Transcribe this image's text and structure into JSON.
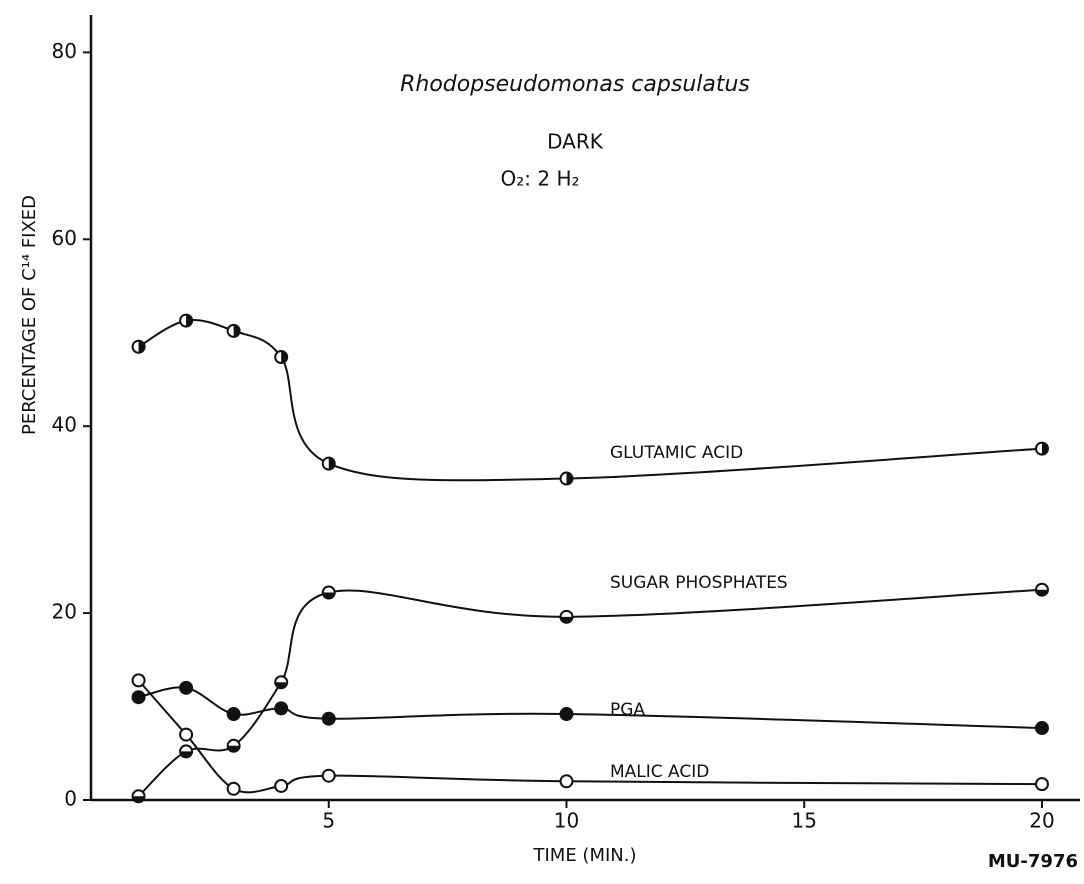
{
  "chart_data": {
    "type": "line",
    "title": "Rhodopseudomonas capsulatus",
    "annotations": [
      "DARK",
      "O₂: 2 H₂",
      "MU-7976"
    ],
    "xlabel": "TIME (MIN.)",
    "ylabel": "PERCENTAGE OF C¹⁴ FIXED",
    "x": [
      1,
      2,
      3,
      4,
      5,
      10,
      20
    ],
    "series": [
      {
        "name": "GLUTAMIC ACID",
        "color": "#111111",
        "marker": "half-vertical",
        "values": [
          48.5,
          51.3,
          50.2,
          47.4,
          36,
          34.4,
          37.6
        ]
      },
      {
        "name": "SUGAR PHOSPHATES",
        "color": "#111111",
        "marker": "half-horizontal",
        "values": [
          0.4,
          5.2,
          5.8,
          12.6,
          22.2,
          19.6,
          22.5
        ]
      },
      {
        "name": "PGA",
        "color": "#111111",
        "marker": "filled",
        "values": [
          11,
          12,
          9.2,
          9.8,
          8.7,
          9.2,
          7.7
        ]
      },
      {
        "name": "MALIC ACID",
        "color": "#111111",
        "marker": "open",
        "values": [
          12.8,
          7,
          1.2,
          1.5,
          2.6,
          2,
          1.7
        ]
      }
    ],
    "xlim": [
      0,
      20.8
    ],
    "ylim": [
      0,
      84
    ],
    "xticks": [
      5,
      10,
      15,
      20
    ],
    "yticks": [
      0,
      20,
      40,
      60,
      80
    ],
    "grid": false
  }
}
